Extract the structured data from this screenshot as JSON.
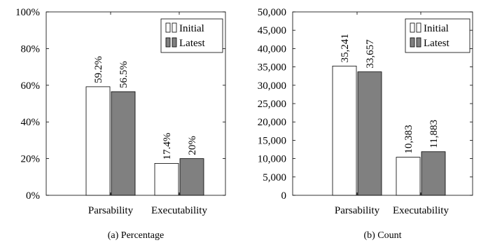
{
  "chart_data": [
    {
      "type": "bar",
      "caption": "(a) Percentage",
      "categories": [
        "Parsability",
        "Executability"
      ],
      "series": [
        {
          "name": "Initial",
          "values": [
            59.2,
            17.4
          ],
          "labels": [
            "59.2%",
            "17.4%"
          ],
          "color": "#ffffff"
        },
        {
          "name": "Latest",
          "values": [
            56.5,
            20
          ],
          "labels": [
            "56.5%",
            "20%"
          ],
          "color": "#808080"
        }
      ],
      "ylim": [
        0,
        100
      ],
      "yticks": [
        0,
        20,
        40,
        60,
        80,
        100
      ],
      "ytick_labels": [
        "0%",
        "20%",
        "40%",
        "60%",
        "80%",
        "100%"
      ],
      "legend": "top-right",
      "grid": false
    },
    {
      "type": "bar",
      "caption": "(b) Count",
      "categories": [
        "Parsability",
        "Executability"
      ],
      "series": [
        {
          "name": "Initial",
          "values": [
            35241,
            10383
          ],
          "labels": [
            "35,241",
            "10,383"
          ],
          "color": "#ffffff"
        },
        {
          "name": "Latest",
          "values": [
            33657,
            11883
          ],
          "labels": [
            "33,657",
            "11,883"
          ],
          "color": "#808080"
        }
      ],
      "ylim": [
        0,
        50000
      ],
      "yticks": [
        0,
        5000,
        10000,
        15000,
        20000,
        25000,
        30000,
        35000,
        40000,
        45000,
        50000
      ],
      "ytick_labels": [
        "0",
        "5,000",
        "10,000",
        "15,000",
        "20,000",
        "25,000",
        "30,000",
        "35,000",
        "40,000",
        "45,000",
        "50,000"
      ],
      "legend": "top-right",
      "grid": false
    }
  ]
}
